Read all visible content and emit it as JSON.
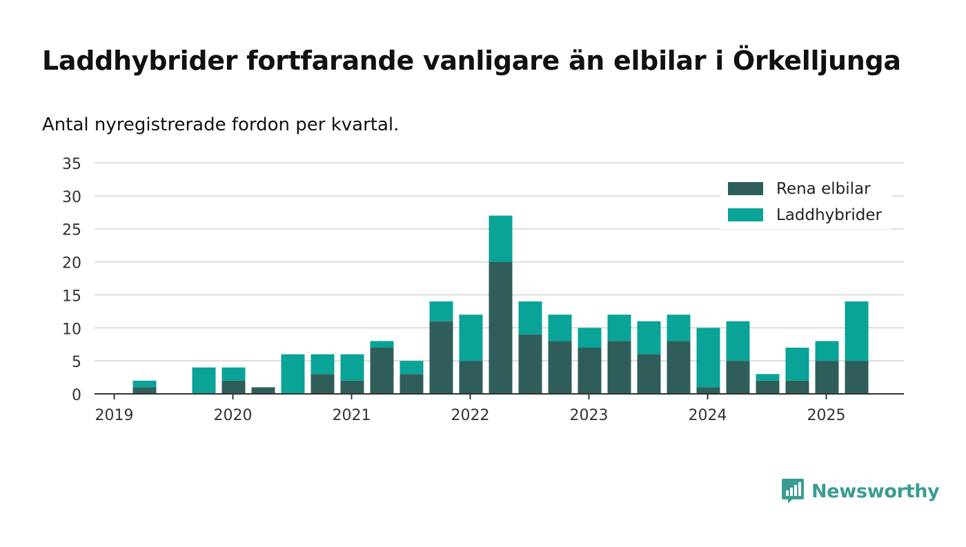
{
  "title": "Laddhybrider fortfarande vanligare än elbilar i Örkelljunga",
  "subtitle": "Antal nyregistrerade fordon per kvartal.",
  "logo": {
    "text": "Newsworthy",
    "icon": "newsworthy-logo-icon",
    "color": "#3a9c93"
  },
  "chart_data": {
    "type": "bar",
    "stacked": true,
    "categories": [
      "2019 Q1",
      "2019 Q2",
      "2019 Q3",
      "2019 Q4",
      "2020 Q1",
      "2020 Q2",
      "2020 Q3",
      "2020 Q4",
      "2021 Q1",
      "2021 Q2",
      "2021 Q3",
      "2021 Q4",
      "2022 Q1",
      "2022 Q2",
      "2022 Q3",
      "2022 Q4",
      "2023 Q1",
      "2023 Q2",
      "2023 Q3",
      "2023 Q4",
      "2024 Q1",
      "2024 Q2",
      "2024 Q3",
      "2024 Q4",
      "2025 Q1",
      "2025 Q2"
    ],
    "series": [
      {
        "name": "Rena elbilar",
        "color": "#2f5e5a",
        "values": [
          0,
          1,
          0,
          0,
          2,
          1,
          0,
          3,
          2,
          7,
          3,
          11,
          5,
          20,
          9,
          8,
          7,
          8,
          6,
          8,
          1,
          5,
          2,
          2,
          5,
          5
        ]
      },
      {
        "name": "Laddhybrider",
        "color": "#0aa398",
        "values": [
          0,
          1,
          0,
          4,
          2,
          0,
          6,
          3,
          4,
          1,
          2,
          3,
          7,
          7,
          5,
          4,
          3,
          4,
          5,
          4,
          9,
          6,
          1,
          5,
          3,
          9
        ]
      }
    ],
    "xticks": [
      "2019",
      "2020",
      "2021",
      "2022",
      "2023",
      "2024",
      "2025"
    ],
    "yticks": [
      0,
      5,
      10,
      15,
      20,
      25,
      30,
      35
    ],
    "ylim": [
      0,
      35
    ],
    "grid": true,
    "legend": "top-right"
  }
}
